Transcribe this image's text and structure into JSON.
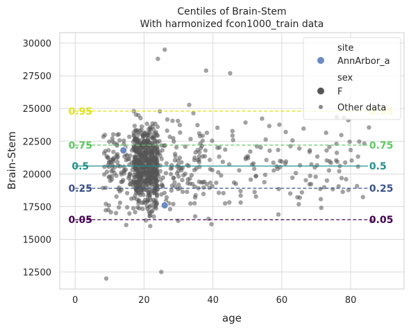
{
  "chart_data": {
    "type": "scatter",
    "title_line1": "Centiles of Brain-Stem",
    "title_line2": "With harmonized fcon1000_train data",
    "xlabel": "age",
    "ylabel": "Brain-Stem",
    "xlim": [
      -4.5,
      95.5
    ],
    "ylim": [
      11200,
      30800
    ],
    "grid": true,
    "xticks": [
      0,
      20,
      40,
      60,
      80
    ],
    "yticks": [
      12500,
      15000,
      17500,
      20000,
      22500,
      25000,
      27500,
      30000
    ],
    "ytick_labels": [
      "12500",
      "15000",
      "17500",
      "20000",
      "22500",
      "25000",
      "27500",
      "30000"
    ],
    "centiles": [
      {
        "label": "0.95",
        "value": 24800,
        "color": "#dde318",
        "style": "dashed",
        "x": [
          0,
          85
        ]
      },
      {
        "label": "0.75",
        "value": 22200,
        "color": "#5ec962",
        "style": "dashed",
        "x": [
          0,
          85
        ]
      },
      {
        "label": "0.5",
        "value": 20600,
        "color": "#21918c",
        "style": "solid",
        "x": [
          0,
          85
        ]
      },
      {
        "label": "0.25",
        "value": 18900,
        "color": "#3b528b",
        "style": "dashed",
        "x": [
          0,
          85
        ]
      },
      {
        "label": "0.05",
        "value": 16500,
        "color": "#440154",
        "style": "dashed",
        "x": [
          0,
          85
        ]
      }
    ],
    "site_points": [
      {
        "site": "AnnArbor_a",
        "sex": "F",
        "x": 14,
        "y": 21800
      },
      {
        "site": "AnnArbor_a",
        "sex": "F",
        "x": 26,
        "y": 17600
      }
    ],
    "other_data_color": "#555555",
    "site_color": "#6a8bc0",
    "legend": {
      "position": "top-right",
      "title_site": "site",
      "site_entry": "AnnArbor_a",
      "title_sex": "sex",
      "sex_entry": "F",
      "other_entry": "Other data"
    }
  }
}
